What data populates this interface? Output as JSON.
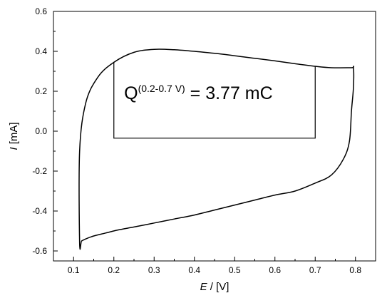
{
  "chart_data": {
    "type": "line",
    "title": "",
    "xlabel": "E / [V]",
    "ylabel": "I [mA]",
    "xlabel_parts": {
      "symbol": "E",
      "rest": " / [V]"
    },
    "ylabel_parts": {
      "symbol": "I",
      "rest": " [mA]"
    },
    "xlim": [
      0.05,
      0.85
    ],
    "ylim": [
      -0.65,
      0.6
    ],
    "xticks": [
      0.1,
      0.2,
      0.3,
      0.4,
      0.5,
      0.6,
      0.7,
      0.8
    ],
    "yticks": [
      -0.6,
      -0.4,
      -0.2,
      0.0,
      0.2,
      0.4,
      0.6
    ],
    "xtick_labels": [
      "0.1",
      "0.2",
      "0.3",
      "0.4",
      "0.5",
      "0.6",
      "0.7",
      "0.8"
    ],
    "ytick_labels": [
      "-0.6",
      "-0.4",
      "-0.2",
      "0.0",
      "0.2",
      "0.4",
      "0.6"
    ],
    "grid": false,
    "legend": "none",
    "line_color": "#000000",
    "series": [
      {
        "name": "",
        "x": [
          0.79,
          0.74,
          0.7,
          0.65,
          0.6,
          0.55,
          0.5,
          0.45,
          0.4,
          0.35,
          0.3,
          0.25,
          0.2,
          0.16,
          0.13,
          0.115,
          0.115,
          0.12,
          0.13,
          0.15,
          0.18,
          0.21,
          0.25,
          0.3,
          0.35,
          0.4,
          0.45,
          0.5,
          0.55,
          0.6,
          0.65,
          0.7,
          0.74,
          0.77,
          0.785,
          0.79,
          0.795,
          0.795
        ],
        "y": [
          0.318,
          0.318,
          0.325,
          0.338,
          0.352,
          0.365,
          0.378,
          0.39,
          0.4,
          0.408,
          0.41,
          0.395,
          0.345,
          0.27,
          0.14,
          -0.1,
          -0.56,
          -0.55,
          -0.54,
          -0.525,
          -0.51,
          -0.495,
          -0.48,
          -0.46,
          -0.44,
          -0.42,
          -0.395,
          -0.37,
          -0.345,
          -0.32,
          -0.3,
          -0.26,
          -0.22,
          -0.14,
          -0.05,
          0.1,
          0.22,
          0.318
        ]
      }
    ],
    "charge_rectangle": {
      "x1": 0.2,
      "x2": 0.7,
      "y1": -0.035,
      "y2_left": 0.345,
      "y2_right": 0.325
    },
    "annotation": {
      "base": "Q",
      "superscript": "(0.2-0.7 V)",
      "rest": " = 3.77 mC",
      "x": 0.41,
      "y": 0.16
    }
  }
}
